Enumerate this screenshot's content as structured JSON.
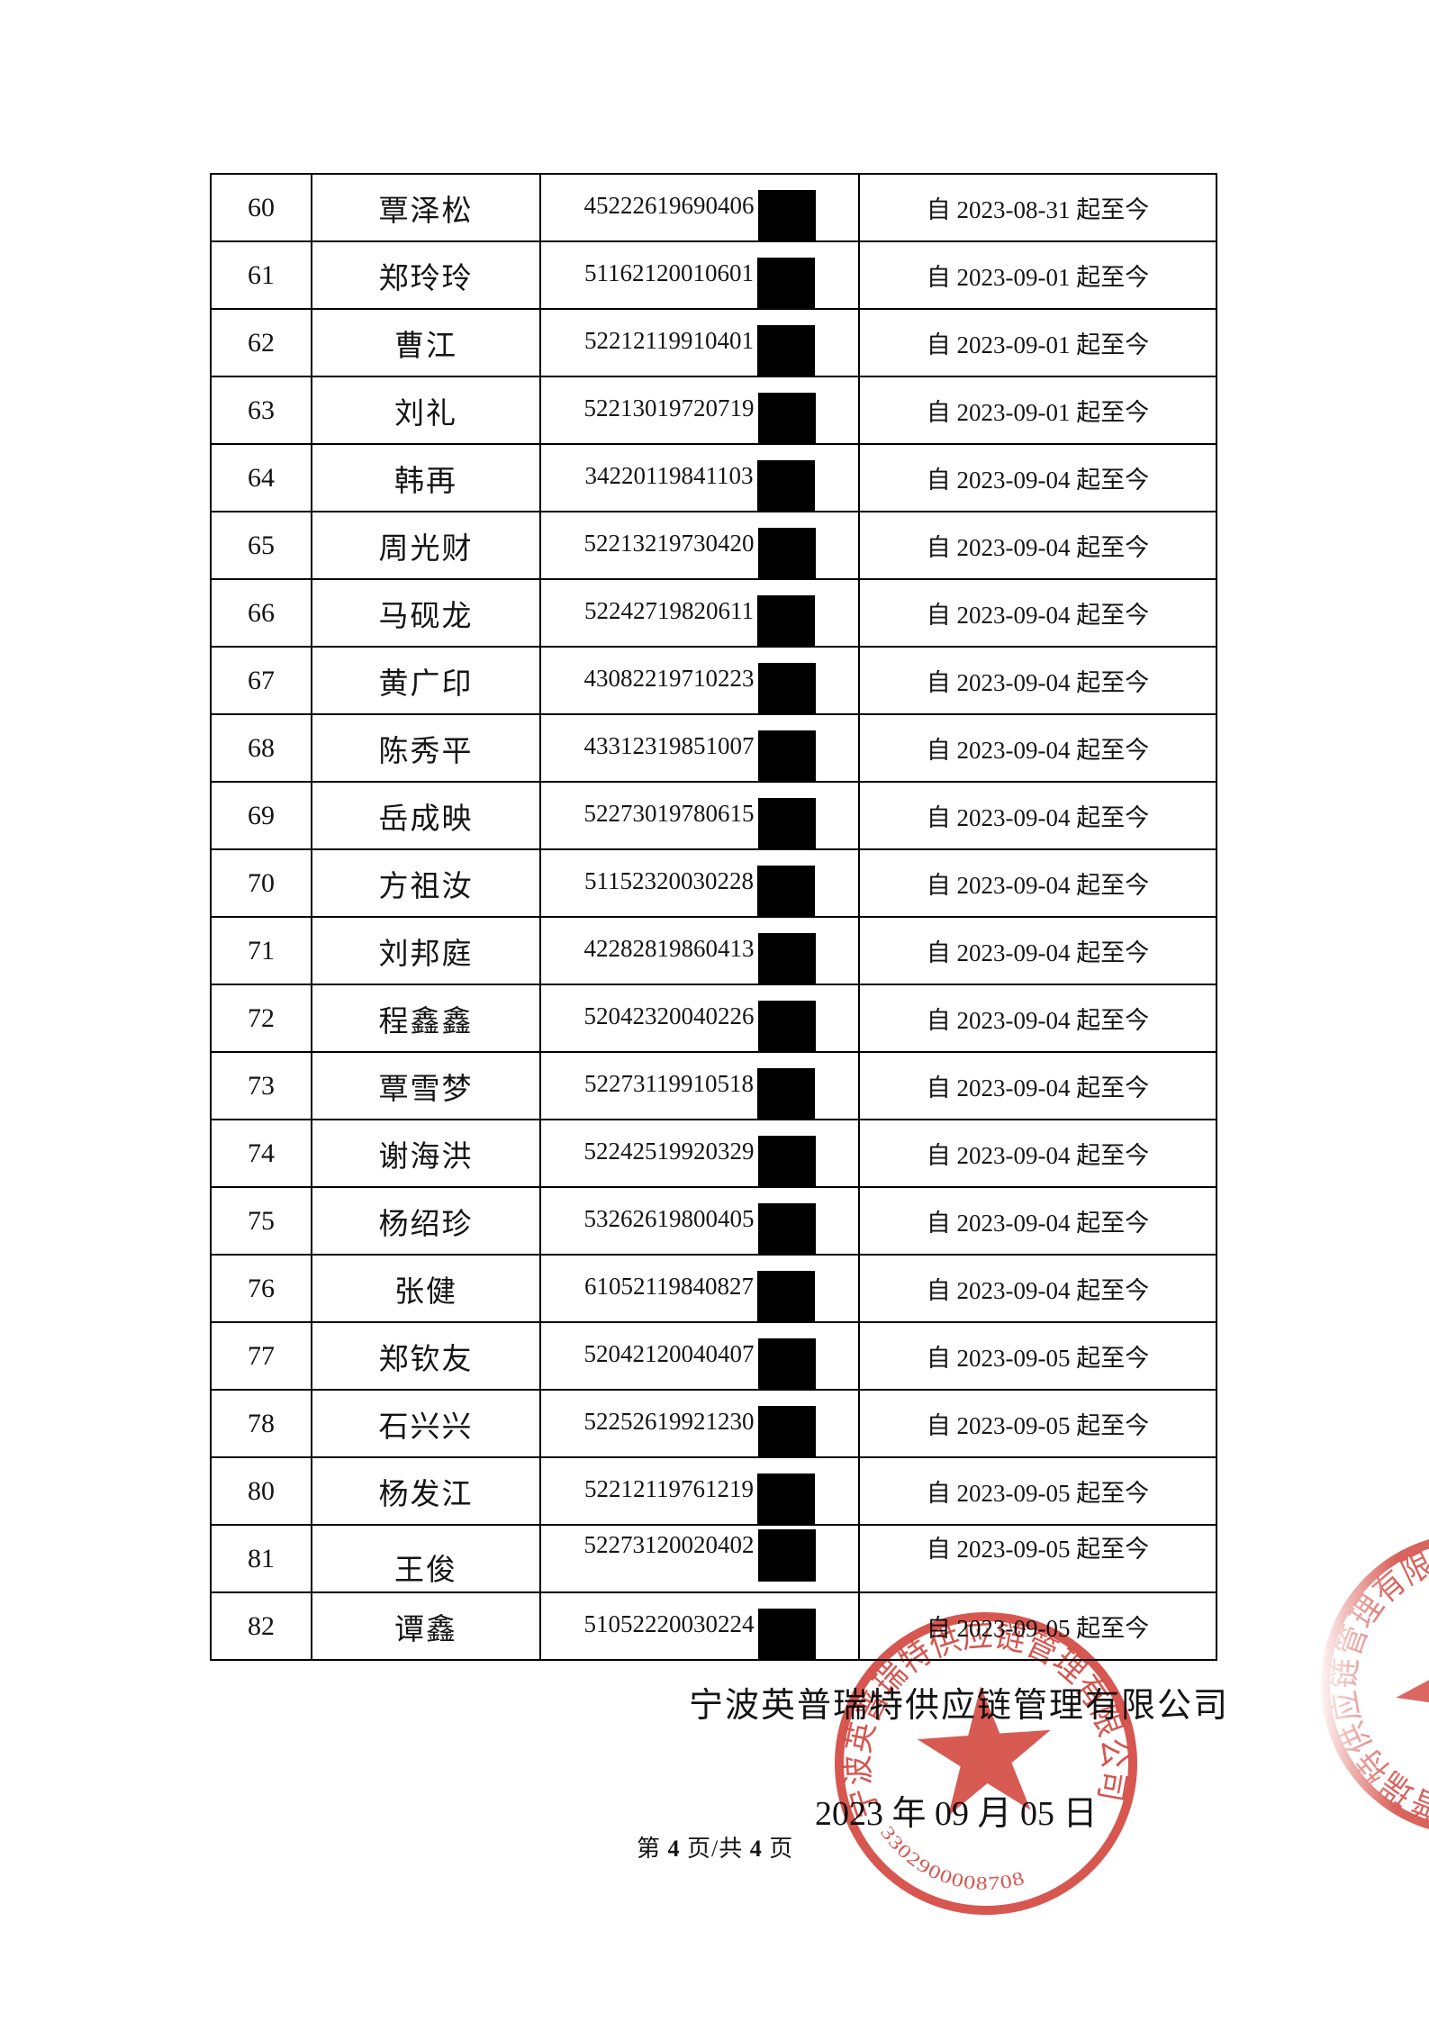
{
  "table": {
    "rows": [
      {
        "num": "60",
        "name": "覃泽松",
        "id": "45222619690406",
        "date": "自 2023-08-31 起至今"
      },
      {
        "num": "61",
        "name": "郑玲玲",
        "id": "51162120010601",
        "date": "自 2023-09-01 起至今"
      },
      {
        "num": "62",
        "name": "曹江",
        "id": "52212119910401",
        "date": "自 2023-09-01 起至今"
      },
      {
        "num": "63",
        "name": "刘礼",
        "id": "52213019720719",
        "date": "自 2023-09-01 起至今"
      },
      {
        "num": "64",
        "name": "韩再",
        "id": "34220119841103",
        "date": "自 2023-09-04 起至今"
      },
      {
        "num": "65",
        "name": "周光财",
        "id": "52213219730420",
        "date": "自 2023-09-04 起至今"
      },
      {
        "num": "66",
        "name": "马砚龙",
        "id": "52242719820611",
        "date": "自 2023-09-04 起至今"
      },
      {
        "num": "67",
        "name": "黄广印",
        "id": "43082219710223",
        "date": "自 2023-09-04 起至今"
      },
      {
        "num": "68",
        "name": "陈秀平",
        "id": "43312319851007",
        "date": "自 2023-09-04 起至今"
      },
      {
        "num": "69",
        "name": "岳成映",
        "id": "52273019780615",
        "date": "自 2023-09-04 起至今"
      },
      {
        "num": "70",
        "name": "方祖汝",
        "id": "51152320030228",
        "date": "自 2023-09-04 起至今"
      },
      {
        "num": "71",
        "name": "刘邦庭",
        "id": "42282819860413",
        "date": "自 2023-09-04 起至今"
      },
      {
        "num": "72",
        "name": "程鑫鑫",
        "id": "52042320040226",
        "date": "自 2023-09-04 起至今"
      },
      {
        "num": "73",
        "name": "覃雪梦",
        "id": "52273119910518",
        "date": "自 2023-09-04 起至今"
      },
      {
        "num": "74",
        "name": "谢海洪",
        "id": "52242519920329",
        "date": "自 2023-09-04 起至今"
      },
      {
        "num": "75",
        "name": "杨绍珍",
        "id": "53262619800405",
        "date": "自 2023-09-04 起至今"
      },
      {
        "num": "76",
        "name": "张健",
        "id": "61052119840827",
        "date": "自 2023-09-04 起至今"
      },
      {
        "num": "77",
        "name": "郑钦友",
        "id": "52042120040407",
        "date": "自 2023-09-05 起至今"
      },
      {
        "num": "78",
        "name": "石兴兴",
        "id": "52252619921230",
        "date": "自 2023-09-05 起至今"
      },
      {
        "num": "80",
        "name": "杨发江",
        "id": "52212119761219",
        "date": "自 2023-09-05 起至今"
      },
      {
        "num": "81",
        "name": "王俊",
        "id": "52273120020402",
        "date": "自 2023-09-05 起至今",
        "shift": true
      },
      {
        "num": "82",
        "name": "谭鑫",
        "id": "51052220030224",
        "date": "自 2023-09-05 起至今"
      }
    ]
  },
  "footer": {
    "company": "宁波英普瑞特供应链管理有限公司",
    "date": "2023 年 09 月 05 日",
    "page": {
      "prefix": "第",
      "current": "4",
      "middle": "页/共",
      "total": "4",
      "suffix": "页"
    }
  },
  "stamp": {
    "company": "宁波英普瑞特供应链管理有限公司",
    "number": "3302900008708",
    "color": "#cf3830"
  }
}
